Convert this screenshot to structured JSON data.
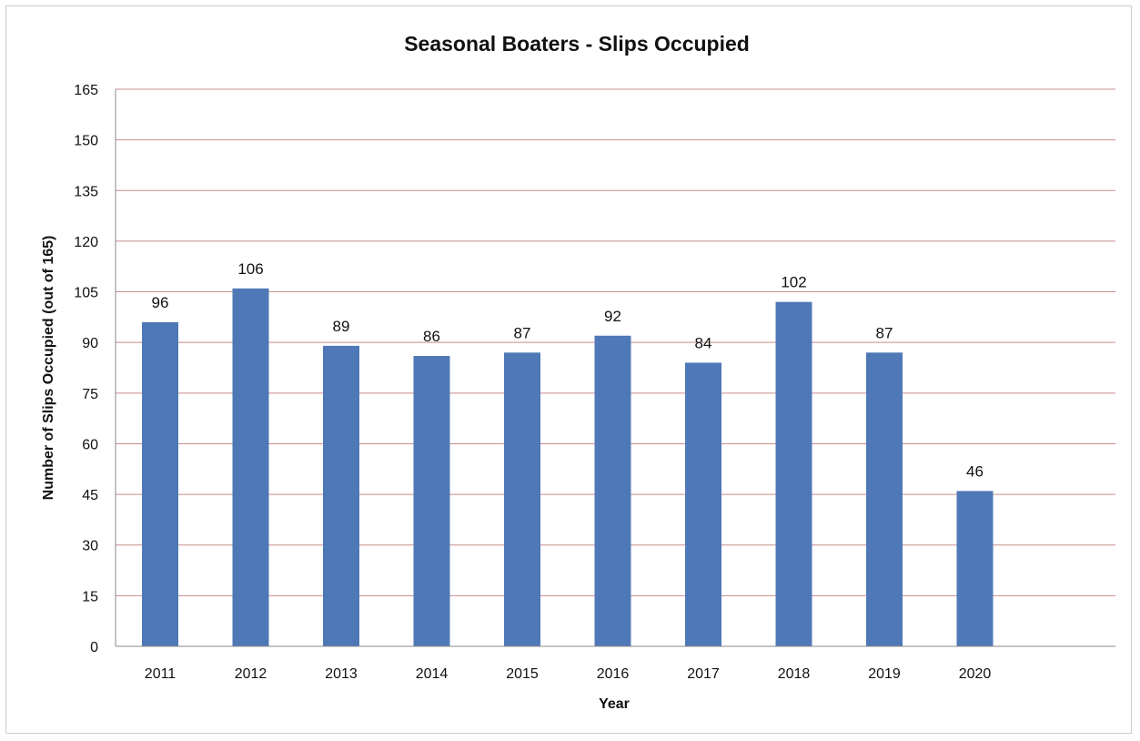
{
  "chart_data": {
    "type": "bar",
    "title": "Seasonal Boaters - Slips Occupied",
    "xlabel": "Year",
    "ylabel": "Number of Slips Occupied (out of 165)",
    "categories": [
      "2011",
      "2012",
      "2013",
      "2014",
      "2015",
      "2016",
      "2017",
      "2018",
      "2019",
      "2020"
    ],
    "values": [
      96,
      106,
      89,
      86,
      87,
      92,
      84,
      102,
      87,
      46
    ],
    "ylim": [
      0,
      165
    ],
    "yticks": [
      0,
      15,
      30,
      45,
      60,
      75,
      90,
      105,
      120,
      135,
      150,
      165
    ],
    "grid": true,
    "legend": "none",
    "colors": {
      "bar": "#4f78b6",
      "grid": "#c98b8b"
    }
  }
}
